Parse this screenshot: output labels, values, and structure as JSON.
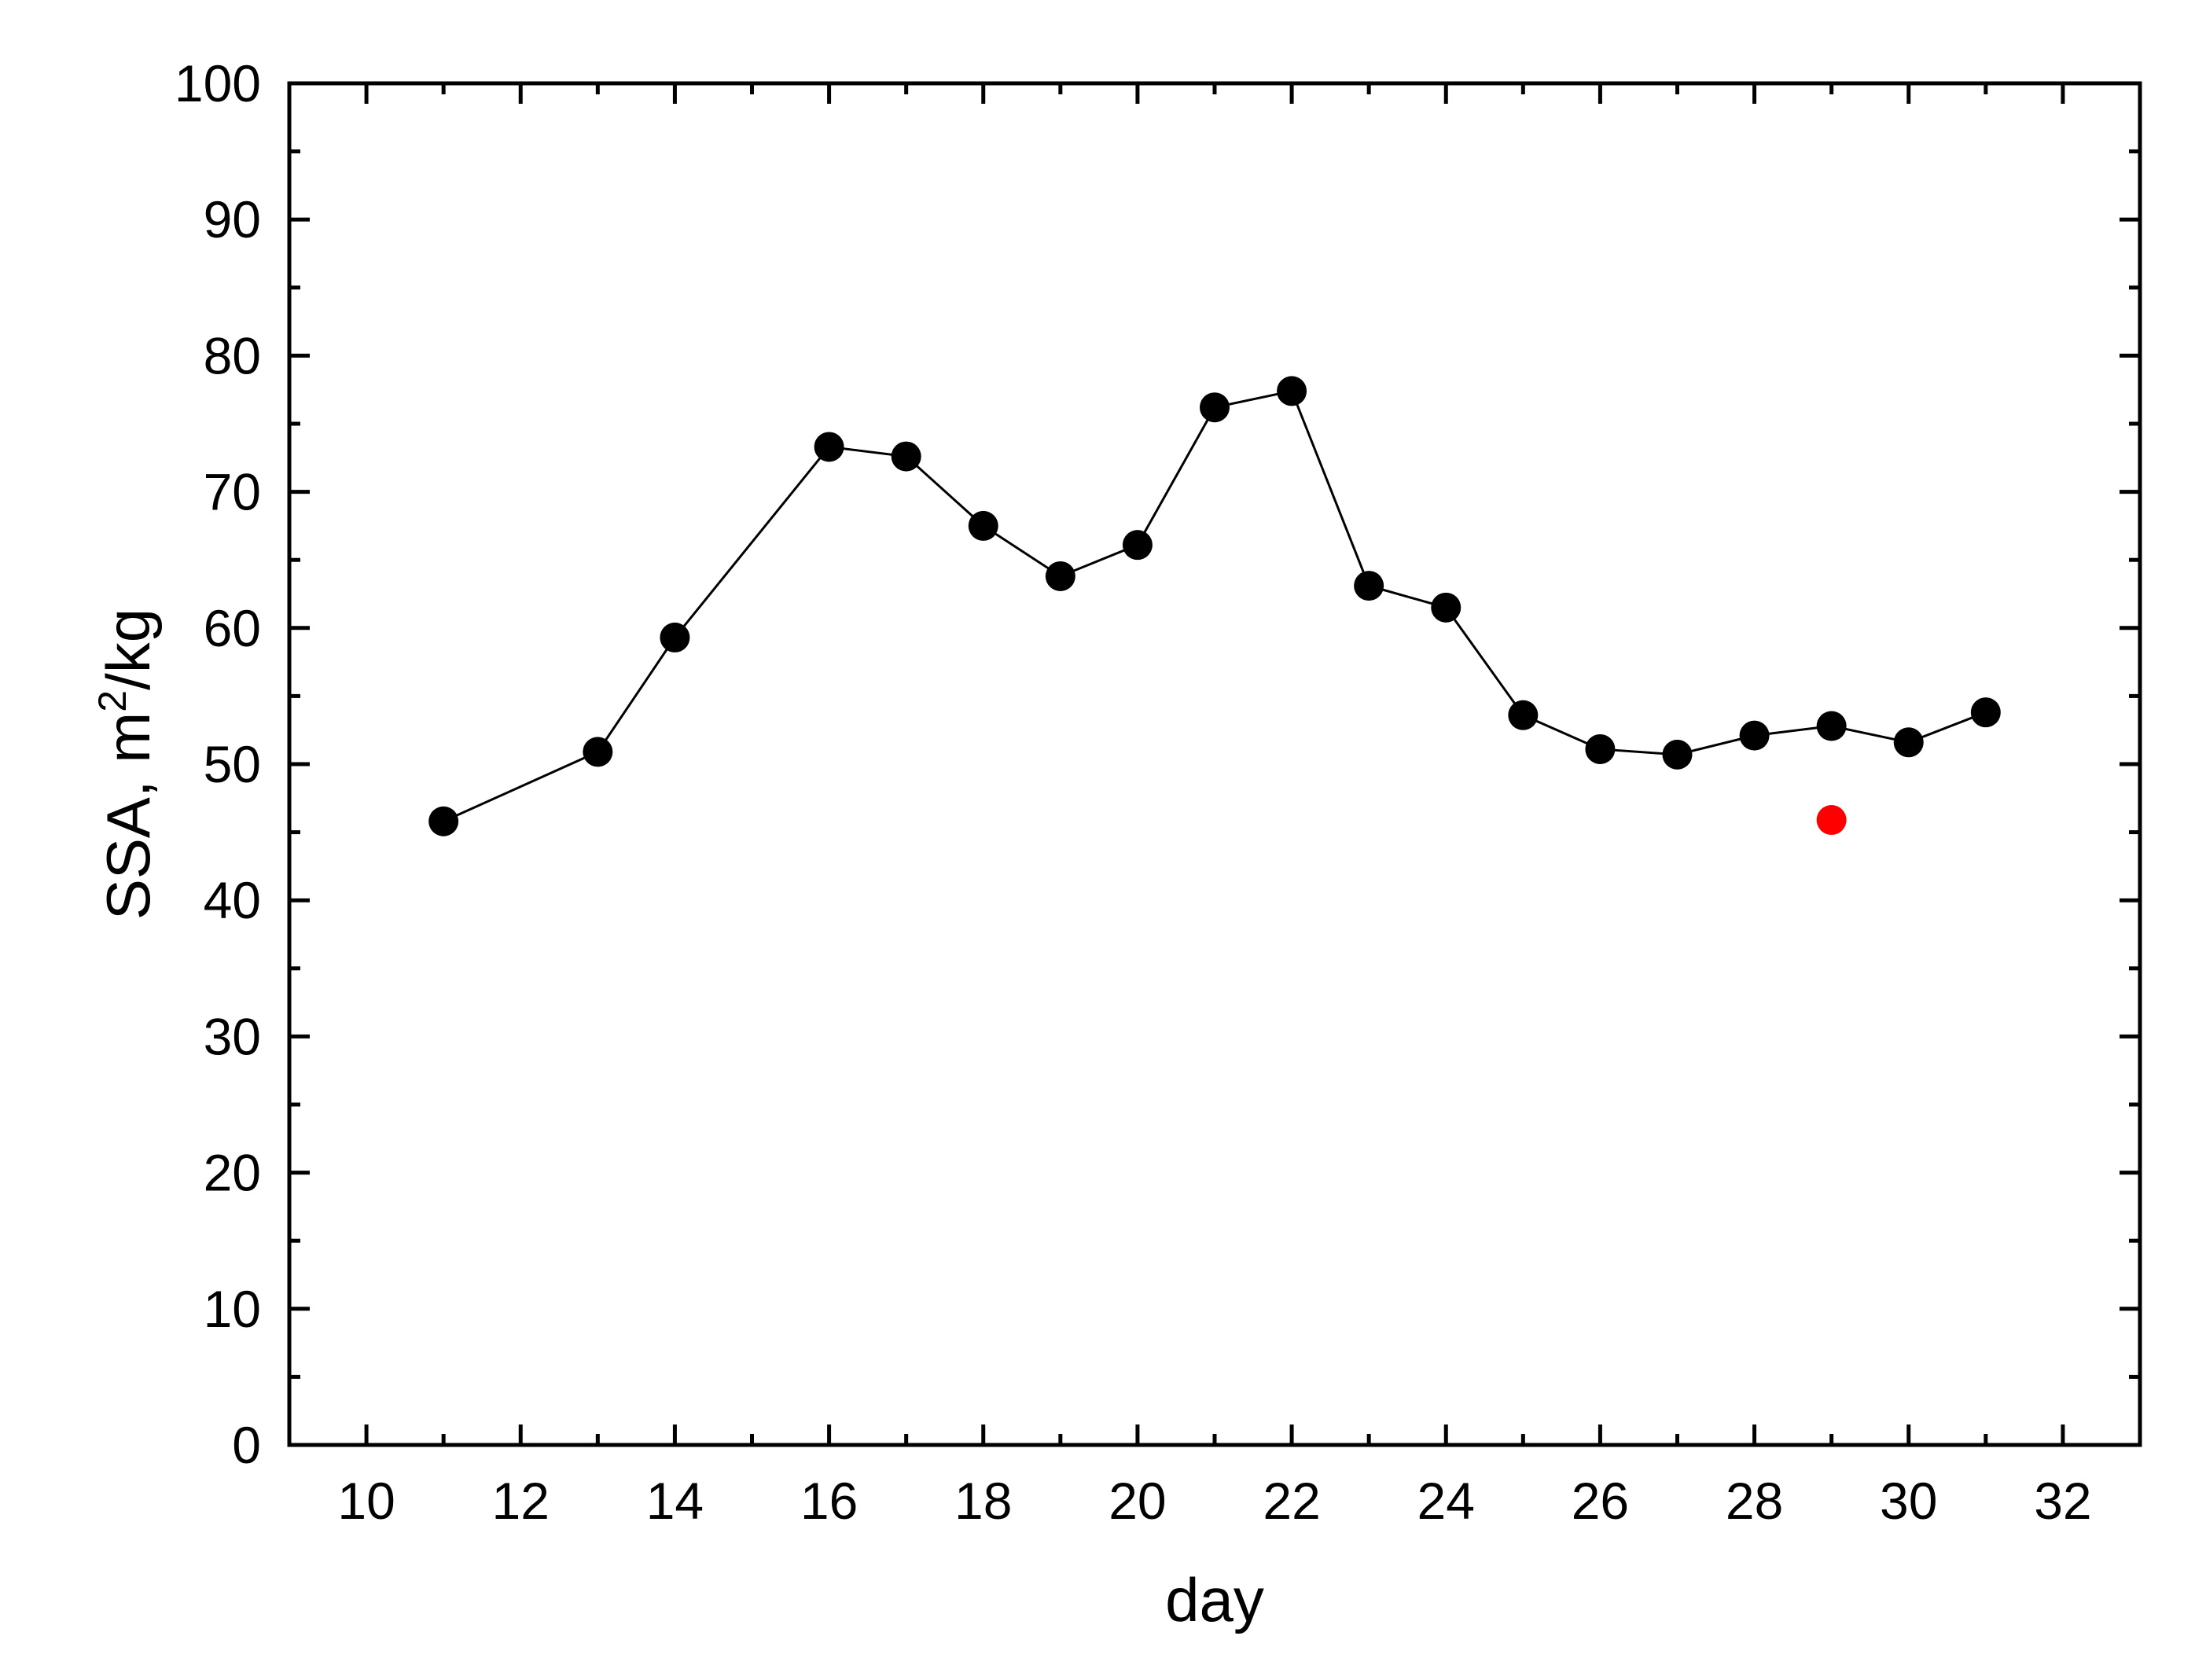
{
  "chart_data": {
    "type": "scatter",
    "title": "",
    "xlabel": "day",
    "ylabel": {
      "main": "SSA, m",
      "sup": "2",
      "tail": "/kg"
    },
    "xlim": [
      9,
      33
    ],
    "ylim": [
      0,
      100
    ],
    "x_ticks": [
      "10",
      "12",
      "14",
      "16",
      "18",
      "20",
      "22",
      "24",
      "26",
      "28",
      "30",
      "32"
    ],
    "y_ticks": [
      "0",
      "10",
      "20",
      "30",
      "40",
      "50",
      "60",
      "70",
      "80",
      "90",
      "100"
    ],
    "grid": false,
    "legend": "none",
    "series": [
      {
        "color": "#000000",
        "line": true,
        "points": [
          {
            "x": 11,
            "y": 45.8
          },
          {
            "x": 13,
            "y": 50.9
          },
          {
            "x": 14,
            "y": 59.3
          },
          {
            "x": 16,
            "y": 73.3
          },
          {
            "x": 17,
            "y": 72.6
          },
          {
            "x": 18,
            "y": 67.5
          },
          {
            "x": 19,
            "y": 63.8
          },
          {
            "x": 20,
            "y": 66.1
          },
          {
            "x": 21,
            "y": 76.2
          },
          {
            "x": 22,
            "y": 77.4
          },
          {
            "x": 23,
            "y": 63.1
          },
          {
            "x": 24,
            "y": 61.5
          },
          {
            "x": 25,
            "y": 53.6
          },
          {
            "x": 26,
            "y": 51.1
          },
          {
            "x": 27,
            "y": 50.7
          },
          {
            "x": 28,
            "y": 52.1
          },
          {
            "x": 29,
            "y": 52.8
          },
          {
            "x": 30,
            "y": 51.6
          },
          {
            "x": 31,
            "y": 53.8
          }
        ]
      },
      {
        "color": "#ff0000",
        "line": false,
        "points": [
          {
            "x": 29,
            "y": 45.9
          }
        ]
      }
    ]
  }
}
